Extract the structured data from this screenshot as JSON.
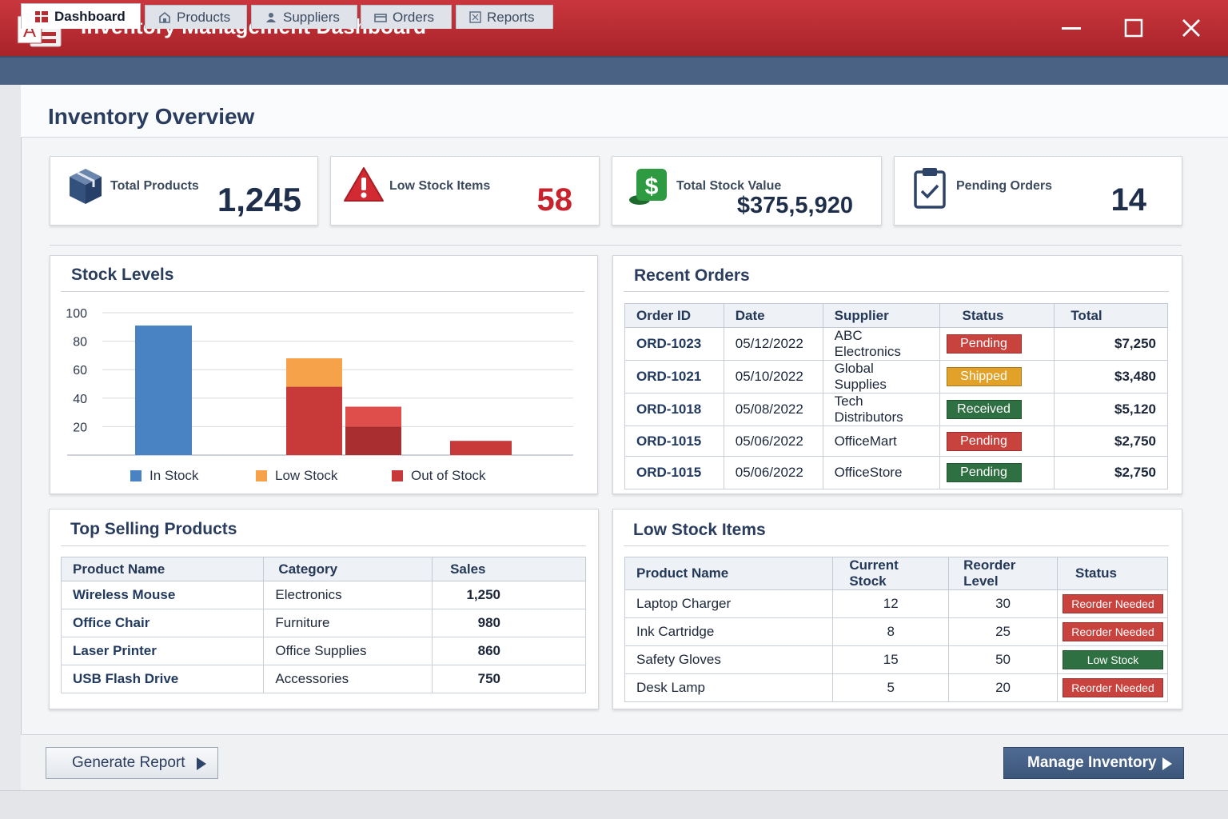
{
  "window": {
    "title": "Inventory Management Dashboard",
    "logo_letter": "A",
    "colors": {
      "titlebar": "#b52c32",
      "tabstrip": "#4a6284",
      "accent": "#2a3d5e"
    }
  },
  "tabs": [
    {
      "label": "Dashboard",
      "icon": "dashboard-icon",
      "active": true
    },
    {
      "label": "Products",
      "icon": "products-icon"
    },
    {
      "label": "Suppliers",
      "icon": "suppliers-icon"
    },
    {
      "label": "Orders",
      "icon": "orders-icon"
    },
    {
      "label": "Reports",
      "icon": "reports-icon"
    }
  ],
  "page_title": "Inventory Overview",
  "stats": [
    {
      "label": "Total Products",
      "value": "1,245",
      "icon": "box-icon"
    },
    {
      "label": "Low Stock Items",
      "value": "58",
      "icon": "warning-icon",
      "color": "#c8232d"
    },
    {
      "label": "Total Stock Value",
      "value": "$375,5,920",
      "icon": "money-icon"
    },
    {
      "label": "Pending Orders",
      "value": "14",
      "icon": "clipboard-check-icon"
    }
  ],
  "stock_levels": {
    "title": "Stock Levels",
    "chart_data": {
      "type": "bar",
      "title": "Stock Levels",
      "ylim": [
        0,
        100
      ],
      "yticks": [
        20,
        40,
        60,
        80,
        100
      ],
      "grid": true,
      "legend_placement": "bottom",
      "bars": [
        {
          "series": "In Stock",
          "base": 0,
          "value": 91,
          "color": "#4a83c4"
        },
        {
          "series": "Out of Stock",
          "base": 0,
          "value": 48,
          "color": "#c8393a"
        },
        {
          "series": "Low Stock",
          "base": 48,
          "value": 20,
          "color": "#f5a24a"
        },
        {
          "series": "Out of Stock",
          "base": 0,
          "value": 20,
          "color": "#a92e2f"
        },
        {
          "series": "Out of Stock",
          "base": 20,
          "value": 14,
          "color": "#e04e4c"
        },
        {
          "series": "Out of Stock",
          "base": 0,
          "value": 10,
          "color": "#c8393a"
        }
      ],
      "legend": [
        {
          "name": "In Stock",
          "color": "#4a83c4"
        },
        {
          "name": "Low Stock",
          "color": "#f5a24a"
        },
        {
          "name": "Out of Stock",
          "color": "#c8393a"
        }
      ]
    }
  },
  "recent_orders": {
    "title": "Recent Orders",
    "columns": [
      "Order ID",
      "Date",
      "Supplier",
      "Status",
      "Total"
    ],
    "rows": [
      {
        "id": "ORD-1023",
        "date": "05/12/2022",
        "supplier": "ABC Electronics",
        "status": "Pending",
        "status_color": "#c8423e",
        "total": "$7,250"
      },
      {
        "id": "ORD-1021",
        "date": "05/10/2022",
        "supplier": "Global Supplies",
        "status": "Shipped",
        "status_color": "#e2a229",
        "total": "$3,480"
      },
      {
        "id": "ORD-1018",
        "date": "05/08/2022",
        "supplier": "Tech Distributors",
        "status": "Received",
        "status_color": "#2f7043",
        "total": "$5,120"
      },
      {
        "id": "ORD-1015",
        "date": "05/06/2022",
        "supplier": "OfficeMart",
        "status": "Pending",
        "status_color": "#c8423e",
        "total": "$2,750"
      },
      {
        "id": "ORD-1015",
        "date": "05/06/2022",
        "supplier": "OfficeStore",
        "status": "Pending",
        "status_color": "#2f7043",
        "total": "$2,750"
      }
    ]
  },
  "top_selling": {
    "title": "Top Selling Products",
    "columns": [
      "Product Name",
      "Category",
      "Sales"
    ],
    "rows": [
      {
        "name": "Wireless Mouse",
        "category": "Electronics",
        "sales": "1,250"
      },
      {
        "name": "Office Chair",
        "category": "Furniture",
        "sales": "980"
      },
      {
        "name": "Laser Printer",
        "category": "Office Supplies",
        "sales": "860"
      },
      {
        "name": "USB Flash Drive",
        "category": "Accessories",
        "sales": "750"
      }
    ]
  },
  "low_stock": {
    "title": "Low Stock Items",
    "columns": [
      "Product Name",
      "Current Stock",
      "Reorder Level",
      "Status"
    ],
    "rows": [
      {
        "name": "Laptop Charger",
        "current": "12",
        "reorder": "30",
        "status": "Reorder Needed",
        "status_color": "#c8423e"
      },
      {
        "name": "Ink Cartridge",
        "current": "8",
        "reorder": "25",
        "status": "Reorder Needed",
        "status_color": "#c8423e"
      },
      {
        "name": "Safety Gloves",
        "current": "15",
        "reorder": "50",
        "status": "Low Stock",
        "status_color": "#2f7043"
      },
      {
        "name": "Desk Lamp",
        "current": "5",
        "reorder": "20",
        "status": "Reorder Needed",
        "status_color": "#c8423e"
      }
    ]
  },
  "actions": {
    "generate_report": "Generate Report",
    "manage_inventory": "Manage Inventory"
  }
}
